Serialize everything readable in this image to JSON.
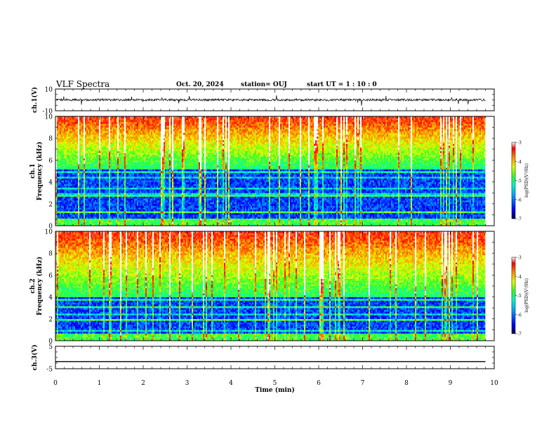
{
  "header": {
    "title": "VLF Spectra",
    "date": "Oct. 20, 2024",
    "station": "station= OUJ",
    "start": "start  UT =   1 : 10 : 0"
  },
  "chart_data": [
    {
      "type": "line",
      "name": "ch1-waveform",
      "ylabel": "ch.1(V)",
      "ylim": [
        -10,
        10
      ],
      "yticks": [
        "10",
        "-10"
      ],
      "xlim": [
        0,
        10
      ],
      "data_extent_min": 9.8,
      "baseline_v": 0.0,
      "noise_amplitude_v": 1.0,
      "grid": false
    },
    {
      "type": "heatmap",
      "name": "ch1-spectrogram",
      "ylabel_top": "ch.1",
      "ylabel": "Frequency (kHz)",
      "ylim": [
        0,
        10
      ],
      "yticks": [
        "0",
        "2",
        "4",
        "6",
        "8",
        "10"
      ],
      "xlim": [
        0,
        10
      ],
      "data_extent_min": 9.8,
      "colorbar": {
        "label": "log(PSD)(V²/Hz)",
        "range": [
          -7,
          -3
        ],
        "ticks": [
          "-3",
          "-4",
          "-5",
          "-6",
          "-7"
        ]
      }
    },
    {
      "type": "heatmap",
      "name": "ch2-spectrogram",
      "ylabel_top": "ch.2",
      "ylabel": "Frequency (kHz)",
      "ylim": [
        0,
        10
      ],
      "yticks": [
        "0",
        "2",
        "4",
        "6",
        "8",
        "10"
      ],
      "xlim": [
        0,
        10
      ],
      "data_extent_min": 9.8,
      "colorbar": {
        "label": "log(PSD)(V²/Hz)",
        "range": [
          -7,
          -3
        ],
        "ticks": [
          "-3",
          "-4",
          "-5",
          "-6",
          "-7"
        ]
      }
    },
    {
      "type": "line",
      "name": "ch3-waveform",
      "ylabel": "ch.3(V)",
      "ylim": [
        -5,
        5
      ],
      "yticks": [
        "5",
        "-5"
      ],
      "xlim": [
        0,
        10
      ],
      "data_extent_min": 9.8,
      "values": [
        [
          0,
          -1.8
        ],
        [
          9.8,
          -1.8
        ]
      ],
      "grid": false
    }
  ],
  "xaxis": {
    "label": "Time (min)",
    "ticks": [
      "0",
      "1",
      "2",
      "3",
      "4",
      "5",
      "6",
      "7",
      "8",
      "9",
      "10"
    ]
  }
}
